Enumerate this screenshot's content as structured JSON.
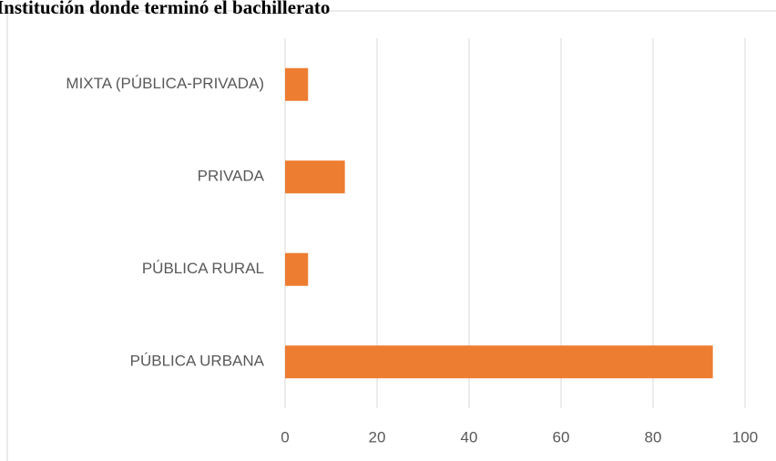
{
  "chart_data": {
    "type": "bar",
    "orientation": "horizontal",
    "title": "Institución donde terminó el bachillerato",
    "categories": [
      "PÚBLICA URBANA",
      "PÚBLICA RURAL",
      "PRIVADA",
      "MIXTA (PÚBLICA-PRIVADA)"
    ],
    "values": [
      93,
      5,
      13,
      5
    ],
    "color": "#ed7d31",
    "xlim": [
      0,
      100
    ],
    "xticks": [
      0,
      20,
      40,
      60,
      80,
      100
    ],
    "grid": true
  }
}
